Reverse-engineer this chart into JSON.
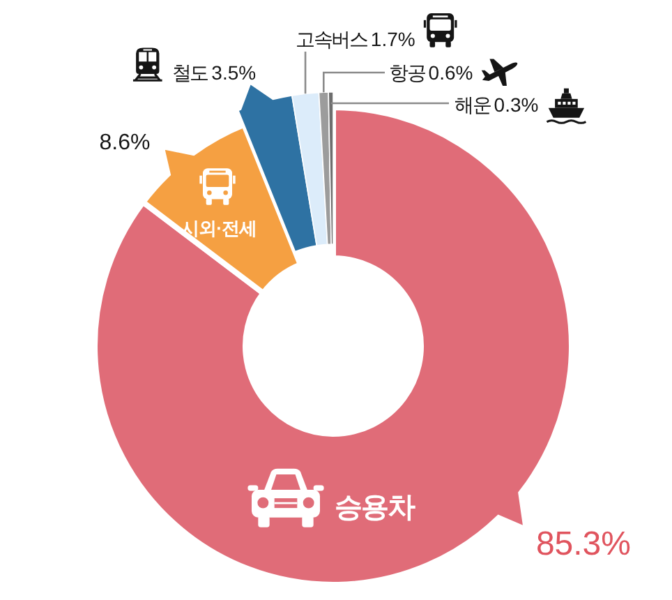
{
  "chart_data": {
    "type": "donut",
    "categories": [
      "승용차",
      "시외·전세",
      "철도",
      "고속버스",
      "항공",
      "해운"
    ],
    "values": [
      85.3,
      8.6,
      3.5,
      1.7,
      0.6,
      0.3
    ],
    "colors": [
      "#e06c78",
      "#f5a042",
      "#2e72a3",
      "#dcecfa",
      "#9c9c9c",
      "#6e6e6e"
    ],
    "value_labels": [
      "85.3%",
      "8.6%",
      "3.5%",
      "1.7%",
      "0.6%",
      "0.3%"
    ]
  }
}
